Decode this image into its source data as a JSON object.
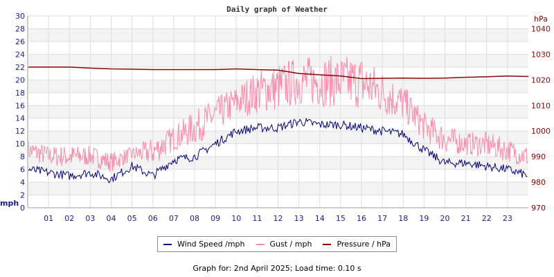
{
  "chart_data": {
    "type": "line",
    "title": "Daily graph of Weather",
    "x_tick_labels": [
      "01",
      "02",
      "03",
      "04",
      "05",
      "06",
      "07",
      "08",
      "09",
      "10",
      "11",
      "12",
      "13",
      "14",
      "15",
      "16",
      "17",
      "18",
      "19",
      "20",
      "21",
      "22",
      "23"
    ],
    "x": [
      0,
      1,
      2,
      3,
      4,
      5,
      6,
      7,
      8,
      9,
      10,
      11,
      12,
      13,
      14,
      15,
      16,
      17,
      18,
      19,
      20,
      21,
      22,
      23,
      24
    ],
    "xlim": [
      0,
      24
    ],
    "y_left": {
      "label": "mph",
      "ylim": [
        0,
        30
      ],
      "ticks": [
        0,
        2,
        4,
        6,
        8,
        10,
        12,
        14,
        16,
        18,
        20,
        22,
        24,
        26,
        28,
        30
      ]
    },
    "y_right": {
      "label": "hPa",
      "ylim": [
        970,
        1045
      ],
      "ticks": [
        970,
        980,
        990,
        1000,
        1010,
        1020,
        1030,
        1040
      ]
    },
    "grid": true,
    "legend_position": "bottom",
    "series": [
      {
        "name": "Wind Speed /mph",
        "axis": "left",
        "color": "#000080",
        "values": [
          6,
          5.5,
          5,
          5.5,
          4.5,
          6.5,
          5,
          7.5,
          8,
          10,
          12,
          12.5,
          12.5,
          13.5,
          13,
          13,
          12.5,
          12,
          11.5,
          9,
          7,
          7,
          6.5,
          6,
          5
        ]
      },
      {
        "name": "Gust / mph",
        "axis": "left",
        "color": "#ff88aa",
        "values": [
          10,
          9,
          9,
          9,
          8,
          9,
          10,
          12,
          14,
          16,
          18,
          20,
          21,
          22,
          22,
          22,
          22,
          20,
          18,
          14,
          12,
          11,
          11,
          10,
          9
        ]
      },
      {
        "name": "Pressure / hPa",
        "axis": "right",
        "color": "#8b0000",
        "values": [
          1025,
          1025,
          1025,
          1024.6,
          1024.3,
          1024.2,
          1024,
          1024,
          1024,
          1024,
          1024.3,
          1024,
          1023.8,
          1022.5,
          1022,
          1021.5,
          1020.5,
          1020.6,
          1020.7,
          1020.6,
          1020.7,
          1021,
          1021.2,
          1021.5,
          1021.3
        ]
      }
    ]
  },
  "footer": "Graph for: 2nd April 2025; Load time: 0.10 s"
}
